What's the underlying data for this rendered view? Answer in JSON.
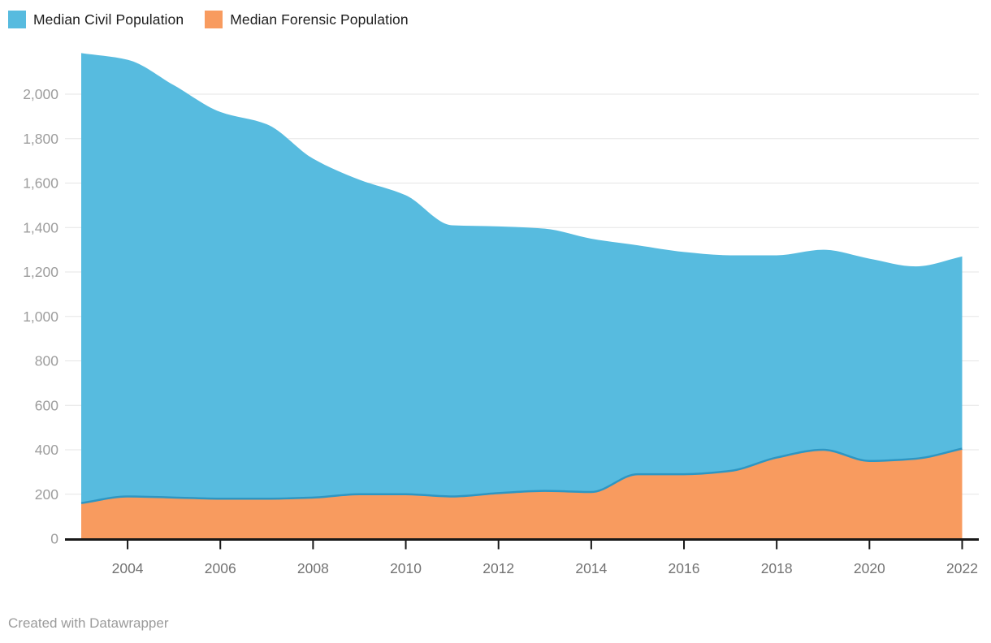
{
  "legend": {
    "items": [
      {
        "label": "Median Civil Population",
        "color": "#57BBDF"
      },
      {
        "label": "Median Forensic Population",
        "color": "#F89B5F"
      }
    ]
  },
  "footer": {
    "text": "Created with Datawrapper"
  },
  "chart_data": {
    "type": "area",
    "stacked": true,
    "title": "",
    "xlabel": "",
    "ylabel": "",
    "x": [
      2003,
      2004,
      2005,
      2006,
      2007,
      2008,
      2009,
      2010,
      2011,
      2012,
      2013,
      2014,
      2015,
      2016,
      2017,
      2018,
      2019,
      2020,
      2021,
      2022
    ],
    "series": [
      {
        "name": "Median Civil Population",
        "color": "#57BBDF",
        "values": [
          2025,
          1965,
          1855,
          1740,
          1685,
          1525,
          1415,
          1345,
          1220,
          1200,
          1180,
          1140,
          1030,
          1000,
          970,
          910,
          900,
          910,
          865,
          865
        ]
      },
      {
        "name": "Median Forensic Population",
        "color": "#F89B5F",
        "values": [
          160,
          190,
          185,
          180,
          180,
          185,
          200,
          200,
          190,
          205,
          215,
          210,
          290,
          290,
          305,
          365,
          400,
          350,
          360,
          405
        ]
      }
    ],
    "stacked_totals": [
      2185,
      2155,
      2040,
      1920,
      1865,
      1710,
      1615,
      1545,
      1410,
      1405,
      1395,
      1350,
      1320,
      1290,
      1275,
      1275,
      1300,
      1260,
      1225,
      1270
    ],
    "boundary_line_color": "#2D96C3",
    "ylim": [
      0,
      2200
    ],
    "xlim": [
      2003,
      2022
    ],
    "yticks": [
      0,
      200,
      400,
      600,
      800,
      1000,
      1200,
      1400,
      1600,
      1800,
      2000
    ],
    "xticks": [
      2004,
      2006,
      2008,
      2010,
      2012,
      2014,
      2016,
      2018,
      2020,
      2022
    ],
    "grid": "horizontal",
    "gridline_color": "#E5E5E5",
    "axis_color": "#181818",
    "y_tick_label_color": "#9D9D9D",
    "x_tick_label_color": "#737373",
    "legend_position": "top-left",
    "background": "#FFFFFF"
  }
}
